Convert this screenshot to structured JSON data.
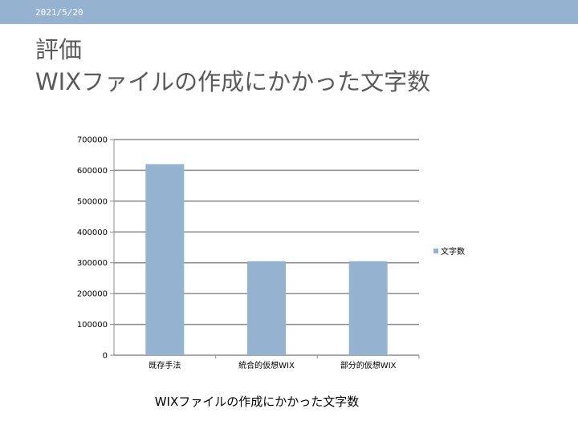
{
  "header": {
    "date": "2021/5/20",
    "title_line1": "評価",
    "title_line2": "WIXファイルの作成にかかった文字数"
  },
  "colors": {
    "header_bar": "#95b3d1",
    "bar": "#95b3d1",
    "gridline": "#8c8c8c"
  },
  "chart_data": {
    "type": "bar",
    "categories": [
      "既存手法",
      "統合的仮想WIX",
      "部分的仮想WIX"
    ],
    "series": [
      {
        "name": "文字数",
        "values": [
          620000,
          305000,
          305000
        ]
      }
    ],
    "title": "WIXファイルの作成にかかった文字数",
    "xlabel": "",
    "ylabel": "",
    "ylim": [
      0,
      700000
    ],
    "yticks": [
      "0",
      "100000",
      "200000",
      "300000",
      "400000",
      "500000",
      "600000",
      "700000"
    ],
    "grid": true,
    "legend_position": "right"
  }
}
